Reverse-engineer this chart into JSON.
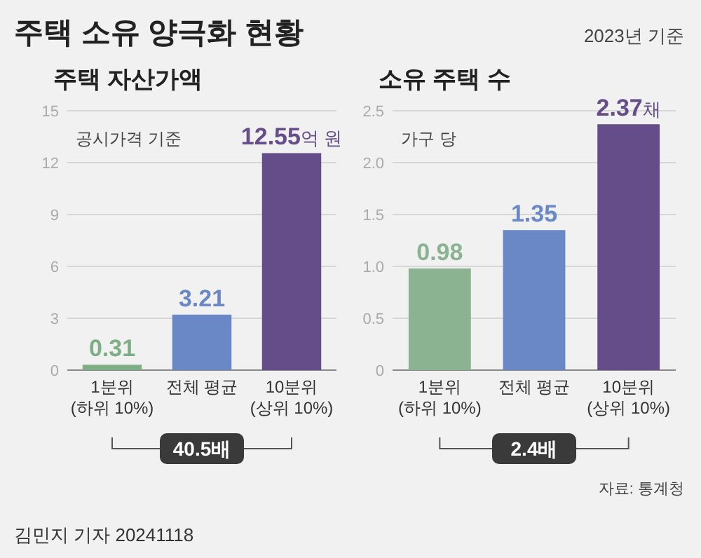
{
  "chart_data": [
    {
      "type": "other",
      "title": "주택 소유 양극화 현황",
      "annotations": [
        "2023년 기준",
        "자료: 통계청",
        "김민지 기자 20241118"
      ]
    },
    {
      "type": "bar",
      "title": "주택 자산가액",
      "subtitle": "공시가격 기준",
      "categories": [
        "1분위\n(하위 10%)",
        "전체 평균",
        "10분위\n(상위 10%)"
      ],
      "values": [
        0.31,
        3.21,
        12.55
      ],
      "colors": [
        "#7fae86",
        "#6a88c6",
        "#654d8a"
      ],
      "value_labels": [
        "0.31",
        "3.21",
        "12.55억 원"
      ],
      "ylim": [
        0,
        15
      ],
      "yticks": [
        0,
        3,
        6,
        9,
        12,
        15
      ],
      "grid": "y",
      "annotations": [
        "40.5배"
      ]
    },
    {
      "type": "bar",
      "title": "소유 주택 수",
      "subtitle": "가구 당",
      "categories": [
        "1분위\n(하위 10%)",
        "전체 평균",
        "10분위\n(상위 10%)"
      ],
      "values": [
        0.98,
        1.35,
        2.37
      ],
      "colors": [
        "#8bb391",
        "#6a88c6",
        "#654d8a"
      ],
      "value_labels": [
        "0.98",
        "1.35",
        "2.37채"
      ],
      "ylim": [
        0,
        2.5
      ],
      "yticks": [
        0,
        {
          "value": 0.5,
          "label": "0.5"
        },
        {
          "value": 1,
          "label": "1.0"
        },
        {
          "value": 1.5,
          "label": "1.5"
        },
        {
          "value": 2,
          "label": "2.0"
        },
        {
          "value": 2.5,
          "label": "2.5"
        }
      ],
      "grid": "y",
      "annotations": [
        "2.4배"
      ]
    }
  ]
}
